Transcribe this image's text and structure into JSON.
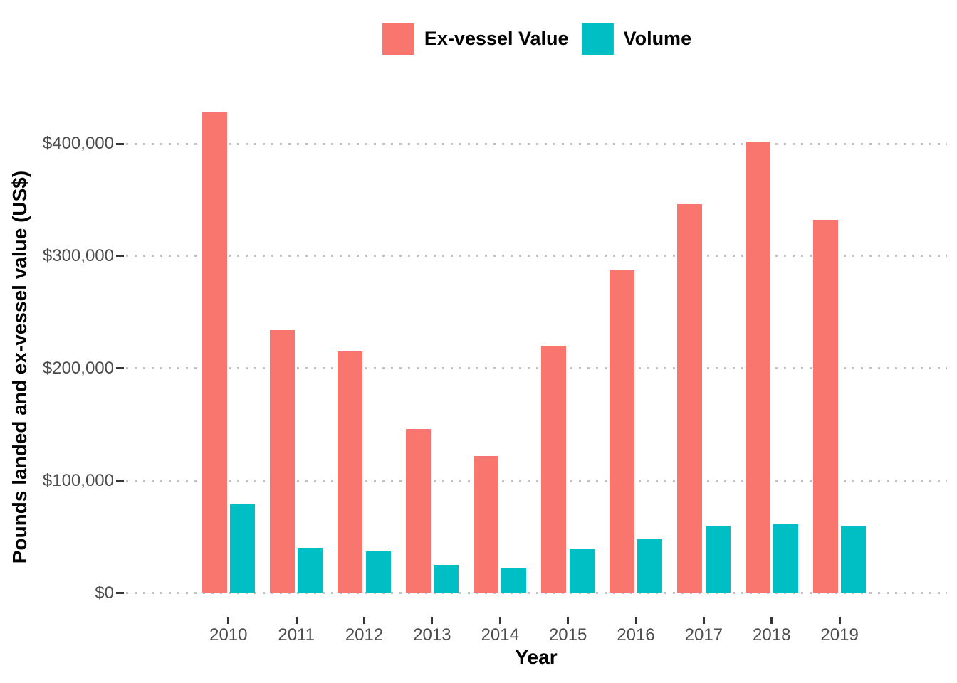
{
  "chart_data": {
    "type": "bar",
    "title": "",
    "xlabel": "Year",
    "ylabel": "Pounds landed and ex-vessel value (US$)",
    "categories": [
      "2010",
      "2011",
      "2012",
      "2013",
      "2014",
      "2015",
      "2016",
      "2017",
      "2018",
      "2019"
    ],
    "series": [
      {
        "name": "Ex-vessel Value",
        "color": "#F8766D",
        "values": [
          428000,
          234000,
          215000,
          146000,
          122000,
          220000,
          287000,
          346000,
          402000,
          332000
        ]
      },
      {
        "name": "Volume",
        "color": "#00BFC4",
        "values": [
          79000,
          40000,
          37000,
          25000,
          22000,
          39000,
          48000,
          59000,
          61000,
          60000
        ]
      }
    ],
    "ylim": [
      0,
      450000
    ],
    "yticks": [
      {
        "value": 0,
        "label": "$0"
      },
      {
        "value": 100000,
        "label": "$100,000"
      },
      {
        "value": 200000,
        "label": "$200,000"
      },
      {
        "value": 300000,
        "label": "$300,000"
      },
      {
        "value": 400000,
        "label": "$400,000"
      }
    ],
    "grid": "horizontal-dotted-major",
    "legend_position": "top-center",
    "tick_label_color": "#4D4D4D",
    "gridline_color": "#C2C2C2",
    "background": "#FFFFFF"
  }
}
